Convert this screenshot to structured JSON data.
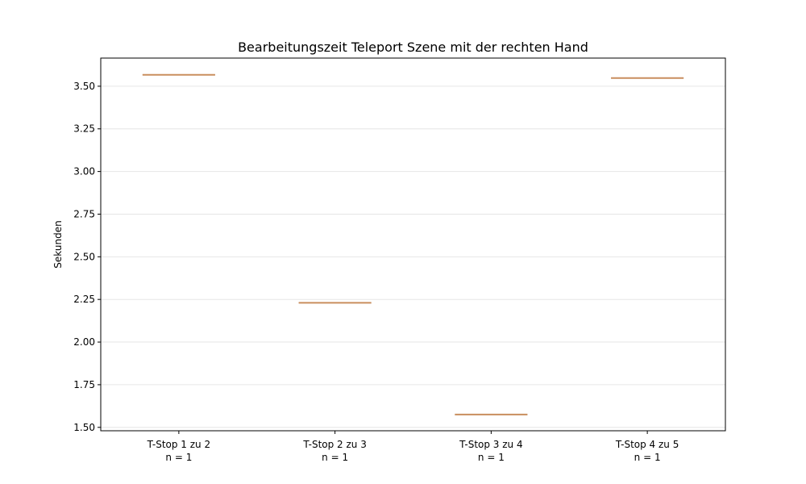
{
  "chart_data": {
    "type": "box",
    "title": "Bearbeitungszeit Teleport Szene mit der rechten Hand",
    "xlabel": "",
    "ylabel": "Sekunden",
    "categories": [
      "T-Stop 1 zu 2",
      "T-Stop 2 zu 3",
      "T-Stop 3 zu 4",
      "T-Stop 4 zu 5"
    ],
    "sample_labels": [
      "n = 1",
      "n = 1",
      "n = 1",
      "n = 1"
    ],
    "values": [
      3.567,
      2.23,
      1.575,
      3.548
    ],
    "ylim": [
      1.48,
      3.665
    ],
    "yticks": [
      1.5,
      1.75,
      2.0,
      2.25,
      2.5,
      2.75,
      3.0,
      3.25,
      3.5
    ],
    "ytick_labels": [
      "1.50",
      "1.75",
      "2.00",
      "2.25",
      "2.50",
      "2.75",
      "3.00",
      "3.25",
      "3.50"
    ],
    "grid": "y",
    "legend": "none",
    "colors": {
      "median": "#c98e5e",
      "box": "#8a7a6a",
      "grid": "#e6e6e6",
      "axis": "#000000"
    }
  }
}
